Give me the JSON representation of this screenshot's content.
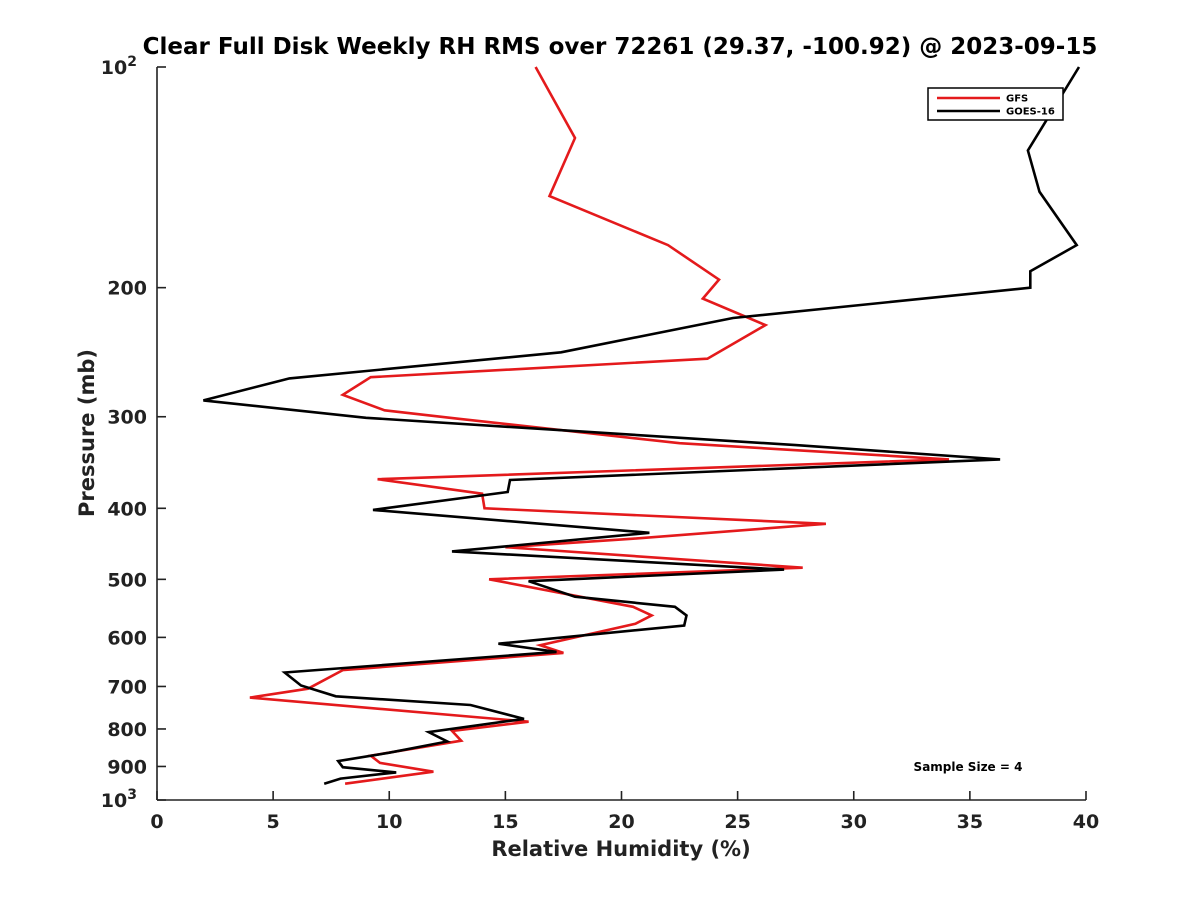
{
  "chart_data": {
    "type": "line",
    "title": "Clear Full Disk Weekly RH RMS over 72261 (29.37, -100.92) @ 2023-09-15",
    "xlabel": "Relative Humidity (%)",
    "ylabel": "Pressure (mb)",
    "xlim": [
      0,
      40
    ],
    "ylim": [
      100,
      1000
    ],
    "y_scale": "log",
    "y_reversed": true,
    "x_ticks": [
      "0",
      "5",
      "10",
      "15",
      "20",
      "25",
      "30",
      "35",
      "40"
    ],
    "y_ticks": [
      {
        "value": 100,
        "label": "10",
        "sup": "2"
      },
      {
        "value": 200,
        "label": "200"
      },
      {
        "value": 300,
        "label": "300"
      },
      {
        "value": 400,
        "label": "400"
      },
      {
        "value": 500,
        "label": "500"
      },
      {
        "value": 600,
        "label": "600"
      },
      {
        "value": 700,
        "label": "700"
      },
      {
        "value": 800,
        "label": "800"
      },
      {
        "value": 900,
        "label": "900"
      },
      {
        "value": 1000,
        "label": "10",
        "sup": "3"
      }
    ],
    "grid": false,
    "legend_position": "top-right",
    "annotation": "Sample Size = 4",
    "series": [
      {
        "name": "GFS",
        "color": "#e41a1c",
        "points": [
          [
            16.3,
            100
          ],
          [
            18.0,
            125
          ],
          [
            16.9,
            150
          ],
          [
            22.0,
            175
          ],
          [
            24.2,
            195
          ],
          [
            23.5,
            207
          ],
          [
            26.2,
            225
          ],
          [
            23.7,
            250
          ],
          [
            9.2,
            265
          ],
          [
            8.0,
            280
          ],
          [
            9.8,
            294
          ],
          [
            13.0,
            302
          ],
          [
            22.5,
            326
          ],
          [
            34.1,
            343
          ],
          [
            9.5,
            365
          ],
          [
            14.0,
            382
          ],
          [
            14.1,
            400
          ],
          [
            28.8,
            420
          ],
          [
            20.5,
            440
          ],
          [
            15.0,
            452
          ],
          [
            27.8,
            482
          ],
          [
            14.3,
            500
          ],
          [
            20.5,
            545
          ],
          [
            21.3,
            560
          ],
          [
            20.6,
            575
          ],
          [
            16.5,
            615
          ],
          [
            17.5,
            630
          ],
          [
            8.0,
            665
          ],
          [
            6.5,
            705
          ],
          [
            4.0,
            725
          ],
          [
            16.0,
            782
          ],
          [
            12.7,
            805
          ],
          [
            13.1,
            830
          ],
          [
            9.2,
            870
          ],
          [
            9.6,
            890
          ],
          [
            11.9,
            915
          ],
          [
            8.1,
            950
          ]
        ]
      },
      {
        "name": "GOES-16",
        "color": "#000000",
        "points": [
          [
            39.7,
            100
          ],
          [
            37.5,
            130
          ],
          [
            38.0,
            148
          ],
          [
            39.6,
            175
          ],
          [
            37.6,
            190
          ],
          [
            37.6,
            200
          ],
          [
            24.8,
            220
          ],
          [
            17.4,
            245
          ],
          [
            5.7,
            266
          ],
          [
            2.0,
            285
          ],
          [
            9.0,
            301
          ],
          [
            27.5,
            328
          ],
          [
            36.3,
            343
          ],
          [
            15.2,
            366
          ],
          [
            15.1,
            380
          ],
          [
            9.3,
            402
          ],
          [
            21.2,
            432
          ],
          [
            12.7,
            458
          ],
          [
            27.0,
            485
          ],
          [
            16.0,
            503
          ],
          [
            18.0,
            528
          ],
          [
            22.3,
            545
          ],
          [
            22.8,
            560
          ],
          [
            22.7,
            578
          ],
          [
            14.7,
            612
          ],
          [
            17.2,
            628
          ],
          [
            5.5,
            670
          ],
          [
            6.2,
            698
          ],
          [
            7.7,
            722
          ],
          [
            13.5,
            742
          ],
          [
            15.8,
            775
          ],
          [
            11.7,
            808
          ],
          [
            12.5,
            832
          ],
          [
            10.0,
            862
          ],
          [
            7.8,
            885
          ],
          [
            8.0,
            902
          ],
          [
            10.3,
            917
          ],
          [
            7.9,
            935
          ],
          [
            7.2,
            950
          ]
        ]
      }
    ]
  }
}
